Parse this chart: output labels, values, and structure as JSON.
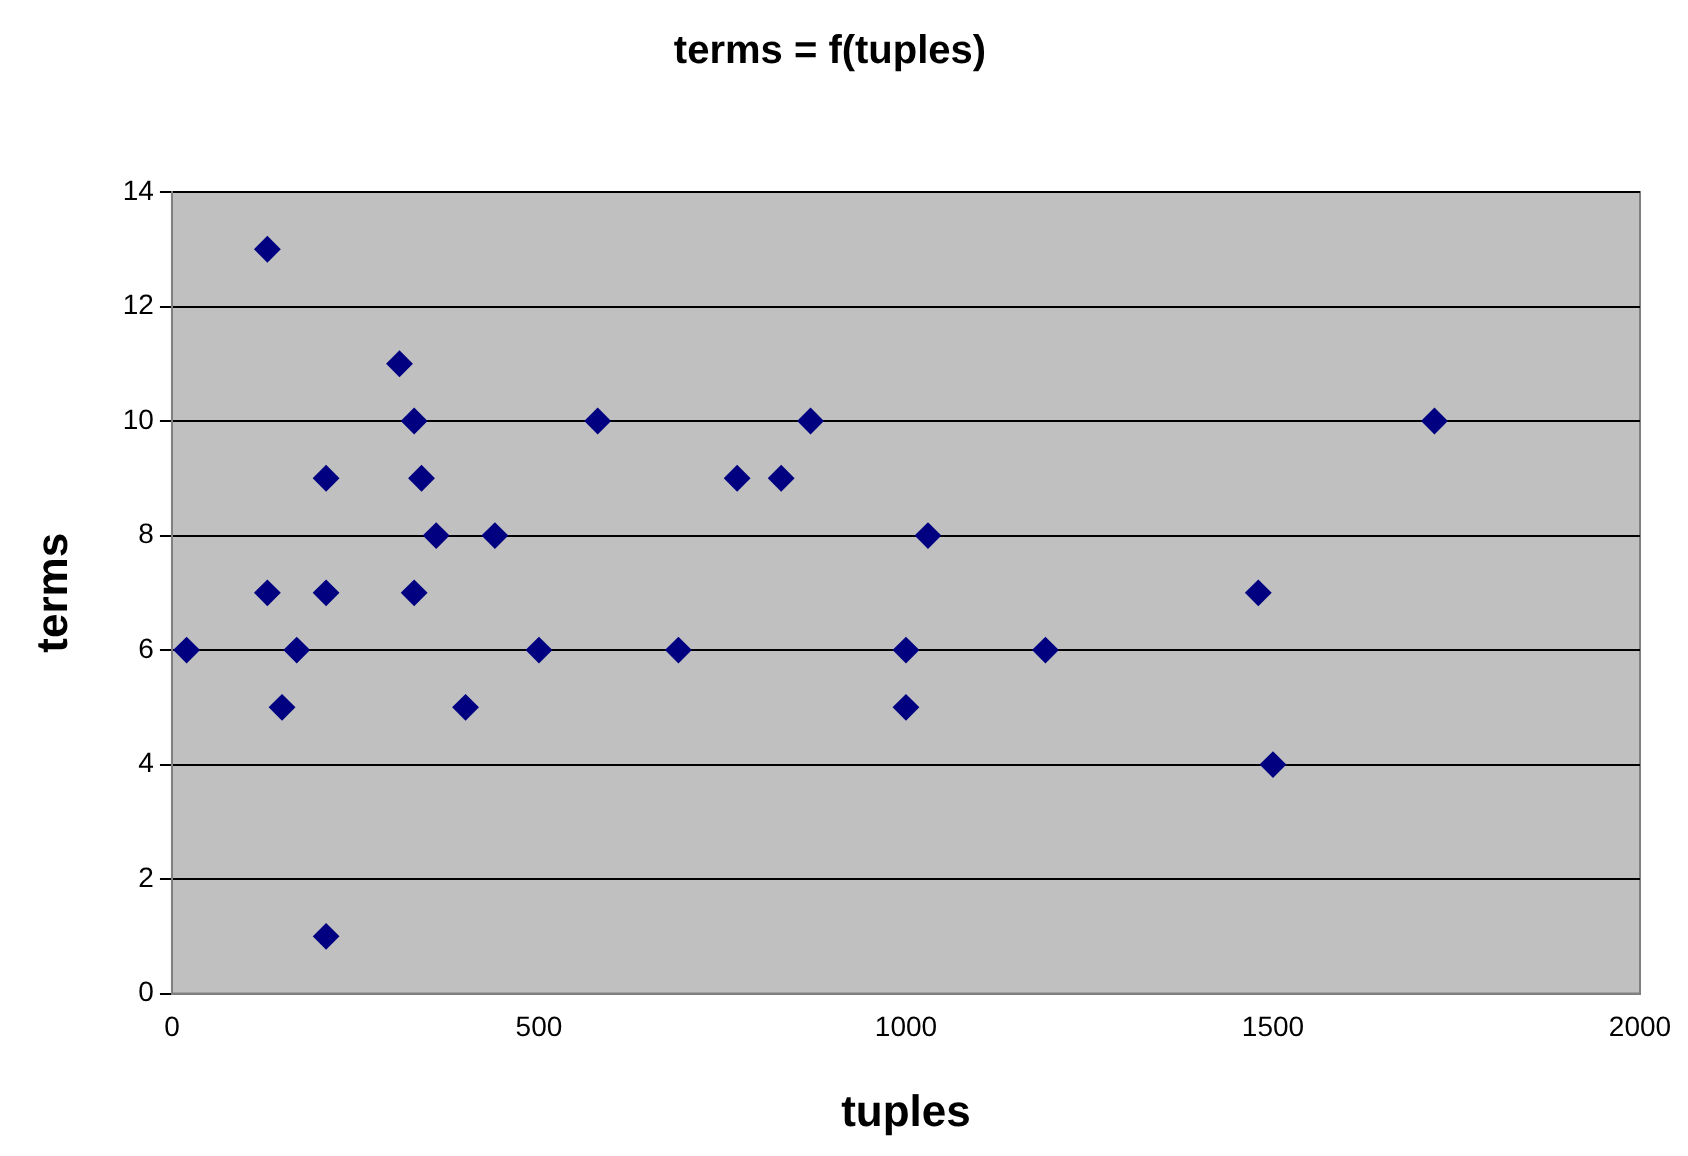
{
  "chart_data": {
    "type": "scatter",
    "title": "terms = f(tuples)",
    "xlabel": "tuples",
    "ylabel": "terms",
    "x": [
      20,
      130,
      130,
      150,
      170,
      210,
      210,
      210,
      310,
      330,
      330,
      340,
      360,
      400,
      440,
      500,
      580,
      690,
      770,
      830,
      870,
      1000,
      1000,
      1030,
      1190,
      1480,
      1500,
      1720
    ],
    "values": [
      6,
      13,
      7,
      5,
      6,
      9,
      7,
      1,
      11,
      10,
      7,
      9,
      8,
      5,
      8,
      6,
      10,
      6,
      9,
      9,
      10,
      6,
      5,
      8,
      6,
      7,
      4,
      10
    ],
    "color": "#000080",
    "marker": "diamond",
    "grid": "y",
    "legend": false,
    "xlim": [
      0,
      2000
    ],
    "xticks": [
      0,
      500,
      1000,
      1500,
      2000
    ],
    "ylim": [
      0,
      14
    ],
    "yticks": [
      0,
      2,
      4,
      6,
      8,
      10,
      12,
      14
    ]
  }
}
